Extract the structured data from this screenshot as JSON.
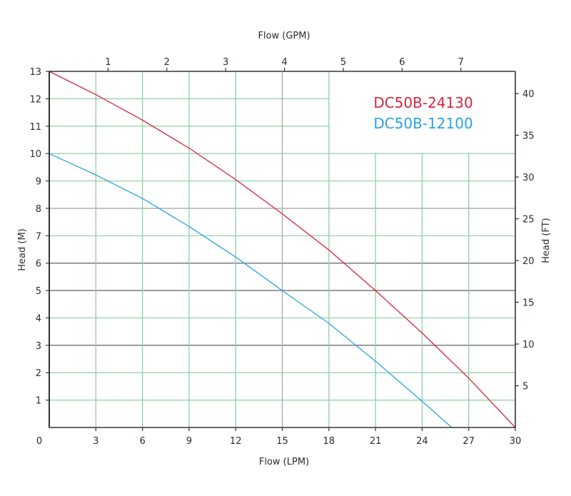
{
  "chart_data": {
    "type": "line",
    "title": "",
    "xlabel": "Flow (LPM)",
    "x2label": "Flow (GPM)",
    "ylabel": "Head (M)",
    "y2label": "Head (FT)",
    "xlim": [
      0,
      30
    ],
    "ylim": [
      0,
      13
    ],
    "x_ticks": [
      0,
      3,
      6,
      9,
      12,
      15,
      18,
      21,
      24,
      27,
      30
    ],
    "y_ticks": [
      1,
      2,
      3,
      4,
      5,
      6,
      7,
      8,
      9,
      10,
      11,
      12,
      13
    ],
    "x2_ticks": [
      1,
      2,
      3,
      4,
      5,
      6,
      7
    ],
    "y2_ticks": [
      5,
      10,
      15,
      20,
      25,
      30,
      35,
      40
    ],
    "grid": true,
    "legend_position": "upper right (inside plot)",
    "series": [
      {
        "name": "DC50B-24130",
        "color": "#d7263d",
        "x": [
          0,
          3,
          6,
          9,
          12,
          15,
          18,
          21,
          24,
          27,
          30
        ],
        "y": [
          13.0,
          12.15,
          11.22,
          10.2,
          9.05,
          7.8,
          6.48,
          5.0,
          3.45,
          1.8,
          0.0
        ]
      },
      {
        "name": "DC50B-12100",
        "color": "#29a3de",
        "x": [
          0,
          3,
          6,
          9,
          12,
          15,
          18,
          21,
          24,
          25.9
        ],
        "y": [
          10.0,
          9.22,
          8.36,
          7.34,
          6.22,
          5.0,
          3.8,
          2.42,
          0.96,
          0.0
        ]
      }
    ]
  },
  "colors": {
    "grid_green": "#8fcfa6",
    "grid_dark": "#6f6f6f",
    "grid_gray": "#a8a8a8",
    "axis": "#333333"
  }
}
